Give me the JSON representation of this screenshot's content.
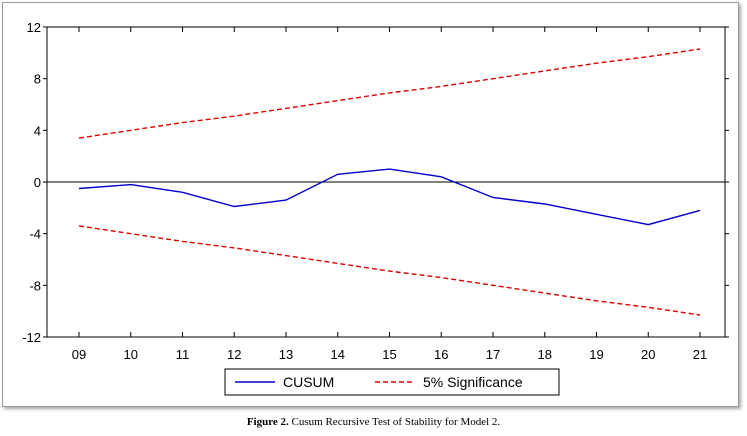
{
  "caption": {
    "label": "Figure 2.",
    "text": " Cusum Recursive Test of Stability for Model 2."
  },
  "chart_data": {
    "type": "line",
    "categories": [
      "09",
      "10",
      "11",
      "12",
      "13",
      "14",
      "15",
      "16",
      "17",
      "18",
      "19",
      "20",
      "21"
    ],
    "ylim": [
      -12,
      12
    ],
    "yticks": [
      "12",
      "8",
      "4",
      "0",
      "-4",
      "-8",
      "-12"
    ],
    "grid": false,
    "legend_position": "bottom-center",
    "series": [
      {
        "name": "CUSUM",
        "color": "#0000cc",
        "dash": "solid",
        "values": [
          -0.5,
          -0.2,
          -0.8,
          -1.9,
          -1.4,
          0.6,
          1.0,
          0.4,
          -1.2,
          -1.7,
          -2.5,
          -3.3,
          -2.2
        ]
      },
      {
        "name": "5% Significance",
        "color": "#e00000",
        "dash": "dashed",
        "values": [
          3.4,
          4.0,
          4.6,
          5.1,
          5.7,
          6.3,
          6.9,
          7.4,
          8.0,
          8.6,
          9.2,
          9.7,
          10.3
        ]
      },
      {
        "name": "5% Significance",
        "color": "#e00000",
        "dash": "dashed",
        "legend": false,
        "values": [
          -3.4,
          -4.0,
          -4.6,
          -5.1,
          -5.7,
          -6.3,
          -6.9,
          -7.4,
          -8.0,
          -8.6,
          -9.2,
          -9.7,
          -10.3
        ]
      }
    ]
  }
}
